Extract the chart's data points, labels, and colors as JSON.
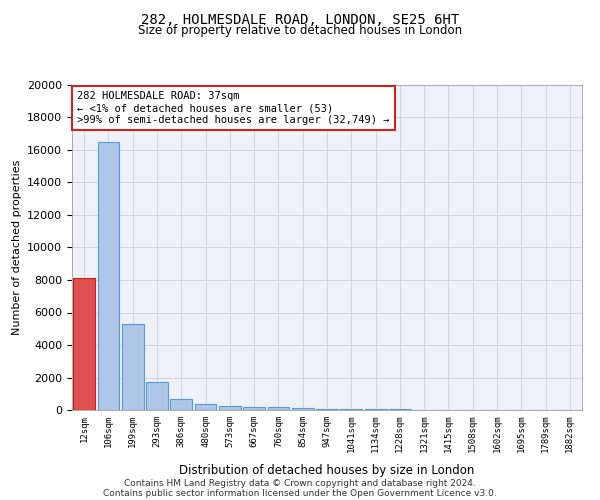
{
  "title_line1": "282, HOLMESDALE ROAD, LONDON, SE25 6HT",
  "title_line2": "Size of property relative to detached houses in London",
  "xlabel": "Distribution of detached houses by size in London",
  "ylabel": "Number of detached properties",
  "categories": [
    "12sqm",
    "106sqm",
    "199sqm",
    "293sqm",
    "386sqm",
    "480sqm",
    "573sqm",
    "667sqm",
    "760sqm",
    "854sqm",
    "947sqm",
    "1041sqm",
    "1134sqm",
    "1228sqm",
    "1321sqm",
    "1415sqm",
    "1508sqm",
    "1602sqm",
    "1695sqm",
    "1789sqm",
    "1882sqm"
  ],
  "values": [
    8100,
    16500,
    5300,
    1750,
    700,
    350,
    270,
    200,
    180,
    130,
    80,
    60,
    50,
    40,
    30,
    25,
    20,
    18,
    15,
    12,
    10
  ],
  "bar_color": "#aec6e8",
  "bar_edge_color": "#5b9bd5",
  "highlight_bar_index": 0,
  "highlight_color": "#e05050",
  "highlight_edge_color": "#cc2222",
  "annotation_text": "282 HOLMESDALE ROAD: 37sqm\n← <1% of detached houses are smaller (53)\n>99% of semi-detached houses are larger (32,749) →",
  "annotation_box_color": "#ffffff",
  "annotation_box_edge_color": "#cc2222",
  "ylim": [
    0,
    20000
  ],
  "yticks": [
    0,
    2000,
    4000,
    6000,
    8000,
    10000,
    12000,
    14000,
    16000,
    18000,
    20000
  ],
  "grid_color": "#c8d0e0",
  "background_color": "#eef1f8",
  "footer_line1": "Contains HM Land Registry data © Crown copyright and database right 2024.",
  "footer_line2": "Contains public sector information licensed under the Open Government Licence v3.0."
}
